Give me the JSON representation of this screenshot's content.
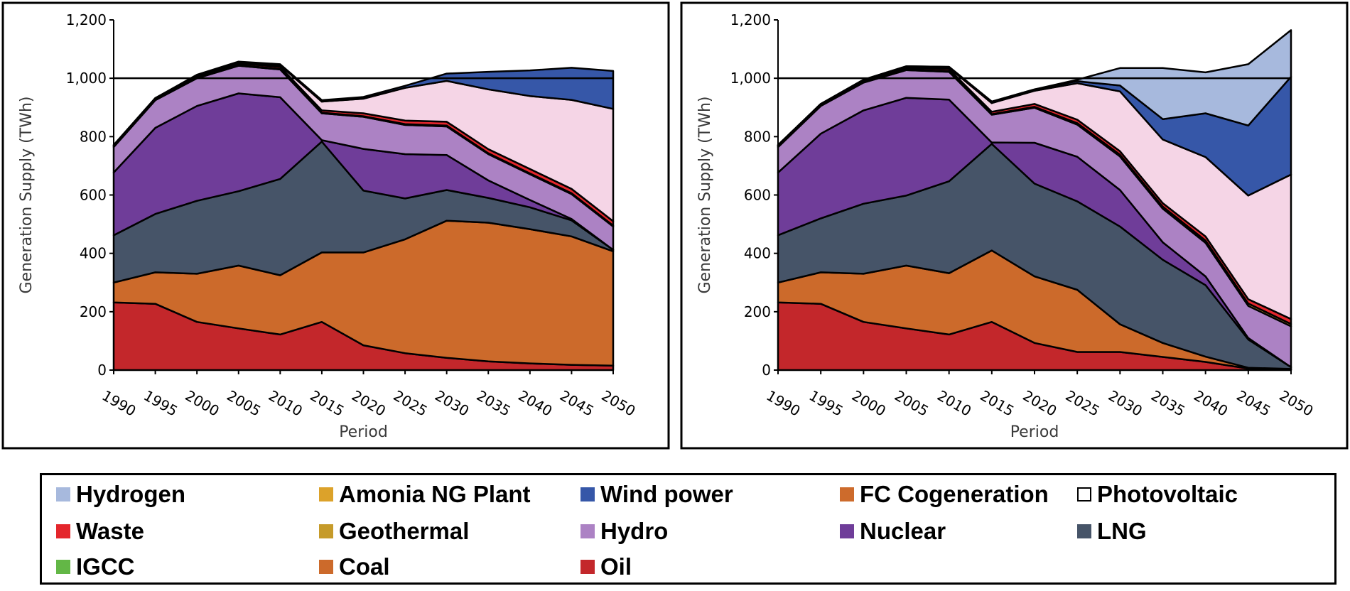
{
  "chart_data": [
    {
      "type": "area",
      "stacked": true,
      "title": "",
      "xlabel": "Period",
      "ylabel": "Generation Supply (TWh)",
      "ylim": [
        0,
        1200
      ],
      "yticks": [
        0,
        200,
        400,
        600,
        800,
        1000,
        1200
      ],
      "ytick_labels": [
        "0",
        "200",
        "400",
        "600",
        "800",
        "1,000",
        "1,200"
      ],
      "x": [
        "1990",
        "1995",
        "2000",
        "2005",
        "2010",
        "2015",
        "2020",
        "2025",
        "2030",
        "2035",
        "2040",
        "2045",
        "2050"
      ],
      "reference_line": 1000,
      "series": [
        {
          "name": "Oil",
          "values": [
            232,
            227,
            165,
            143,
            122,
            165,
            85,
            58,
            42,
            30,
            23,
            18,
            15
          ]
        },
        {
          "name": "Coal",
          "values": [
            68,
            108,
            165,
            215,
            203,
            238,
            318,
            390,
            470,
            475,
            460,
            440,
            392
          ]
        },
        {
          "name": "IGCC",
          "values": [
            0,
            0,
            0,
            0,
            0,
            0,
            0,
            0,
            0,
            0,
            0,
            0,
            0
          ]
        },
        {
          "name": "LNG",
          "values": [
            162,
            200,
            250,
            255,
            330,
            380,
            212,
            140,
            105,
            85,
            75,
            55,
            5
          ]
        },
        {
          "name": "Nuclear",
          "values": [
            215,
            295,
            325,
            335,
            280,
            5,
            143,
            152,
            120,
            60,
            25,
            5,
            0
          ]
        },
        {
          "name": "Hydro",
          "values": [
            87,
            95,
            95,
            95,
            95,
            92,
            110,
            100,
            98,
            90,
            88,
            85,
            80
          ]
        },
        {
          "name": "Geothermal",
          "values": [
            2,
            2,
            2,
            2,
            2,
            2,
            2,
            3,
            3,
            3,
            3,
            3,
            3
          ]
        },
        {
          "name": "Waste",
          "values": [
            5,
            5,
            6,
            6,
            7,
            8,
            10,
            12,
            13,
            14,
            15,
            15,
            15
          ]
        },
        {
          "name": "Photovoltaic",
          "values": [
            0,
            0,
            2,
            3,
            5,
            30,
            50,
            112,
            140,
            205,
            250,
            305,
            385
          ]
        },
        {
          "name": "FC Cogeneration",
          "values": [
            0,
            0,
            0,
            0,
            0,
            0,
            0,
            0,
            0,
            0,
            0,
            0,
            0
          ]
        },
        {
          "name": "Wind power",
          "values": [
            0,
            0,
            2,
            3,
            4,
            5,
            6,
            7,
            25,
            60,
            88,
            110,
            130
          ]
        },
        {
          "name": "Amonia NG Plant",
          "values": [
            0,
            0,
            0,
            0,
            0,
            0,
            0,
            0,
            0,
            0,
            0,
            0,
            0
          ]
        },
        {
          "name": "Hydrogen",
          "values": [
            0,
            0,
            0,
            0,
            0,
            0,
            0,
            0,
            0,
            0,
            0,
            0,
            0
          ]
        }
      ]
    },
    {
      "type": "area",
      "stacked": true,
      "title": "",
      "xlabel": "Period",
      "ylabel": "Generation Supply (TWh)",
      "ylim": [
        0,
        1200
      ],
      "yticks": [
        0,
        200,
        400,
        600,
        800,
        1000,
        1200
      ],
      "ytick_labels": [
        "0",
        "200",
        "400",
        "600",
        "800",
        "1,000",
        "1,200"
      ],
      "x": [
        "1990",
        "1995",
        "2000",
        "2005",
        "2010",
        "2015",
        "2020",
        "2025",
        "2030",
        "2035",
        "2040",
        "2045",
        "2050"
      ],
      "reference_line": 1000,
      "series": [
        {
          "name": "Oil",
          "values": [
            232,
            227,
            165,
            143,
            122,
            165,
            93,
            62,
            62,
            45,
            28,
            5,
            2
          ]
        },
        {
          "name": "Coal",
          "values": [
            68,
            108,
            165,
            215,
            210,
            245,
            228,
            213,
            95,
            48,
            18,
            3,
            2
          ]
        },
        {
          "name": "IGCC",
          "values": [
            0,
            0,
            0,
            0,
            0,
            0,
            0,
            0,
            0,
            0,
            0,
            0,
            0
          ]
        },
        {
          "name": "LNG",
          "values": [
            162,
            185,
            240,
            240,
            315,
            365,
            318,
            303,
            335,
            285,
            245,
            97,
            6
          ]
        },
        {
          "name": "Nuclear",
          "values": [
            215,
            290,
            320,
            335,
            280,
            5,
            140,
            153,
            125,
            60,
            30,
            5,
            0
          ]
        },
        {
          "name": "Hydro",
          "values": [
            87,
            95,
            95,
            95,
            95,
            95,
            120,
            110,
            115,
            115,
            115,
            110,
            140
          ]
        },
        {
          "name": "Geothermal",
          "values": [
            2,
            2,
            2,
            2,
            2,
            2,
            3,
            5,
            6,
            7,
            8,
            8,
            8
          ]
        },
        {
          "name": "Waste",
          "values": [
            5,
            5,
            5,
            6,
            7,
            8,
            10,
            12,
            12,
            12,
            14,
            15,
            17
          ]
        },
        {
          "name": "Photovoltaic",
          "values": [
            0,
            0,
            2,
            3,
            5,
            30,
            45,
            125,
            205,
            218,
            272,
            355,
            495
          ]
        },
        {
          "name": "FC Cogeneration",
          "values": [
            0,
            0,
            0,
            0,
            0,
            0,
            0,
            0,
            0,
            0,
            0,
            0,
            0
          ]
        },
        {
          "name": "Wind power",
          "values": [
            0,
            0,
            1,
            2,
            3,
            5,
            5,
            7,
            20,
            70,
            150,
            240,
            335
          ]
        },
        {
          "name": "Amonia NG Plant",
          "values": [
            0,
            0,
            0,
            0,
            0,
            0,
            0,
            0,
            0,
            0,
            0,
            0,
            0
          ]
        },
        {
          "name": "Hydrogen",
          "values": [
            0,
            0,
            0,
            0,
            0,
            0,
            0,
            5,
            60,
            175,
            140,
            210,
            160
          ]
        }
      ]
    }
  ],
  "colors": {
    "Oil": "#c3272b",
    "Coal": "#cc6a2b",
    "IGCC": "#63b746",
    "LNG": "#465468",
    "Nuclear": "#6f3d99",
    "Hydro": "#ac82c4",
    "Geothermal": "#c69b2a",
    "Waste": "#e4262c",
    "Photovoltaic": "#f5d5e6",
    "FC Cogeneration": "#cd6b2c",
    "Wind power": "#3657a8",
    "Amonia NG Plant": "#dca22a",
    "Hydrogen": "#a7b9dd"
  },
  "legend": {
    "items": [
      {
        "label": "Hydrogen",
        "swatch": "#a7b9dd"
      },
      {
        "label": "Amonia NG Plant",
        "swatch": "#dca22a"
      },
      {
        "label": "Wind power",
        "swatch": "#3657a8"
      },
      {
        "label": "FC Cogeneration",
        "swatch": "#cd6b2c"
      },
      {
        "label": "Photovoltaic",
        "swatch": "#ffffff"
      },
      {
        "label": "Waste",
        "swatch": "#e4262c"
      },
      {
        "label": "Geothermal",
        "swatch": "#c69b2a"
      },
      {
        "label": "Hydro",
        "swatch": "#ac82c4"
      },
      {
        "label": "Nuclear",
        "swatch": "#6f3d99"
      },
      {
        "label": "LNG",
        "swatch": "#465468"
      },
      {
        "label": "IGCC",
        "swatch": "#63b746"
      },
      {
        "label": "Coal",
        "swatch": "#cc6a2b"
      },
      {
        "label": "Oil",
        "swatch": "#c3272b"
      }
    ]
  }
}
